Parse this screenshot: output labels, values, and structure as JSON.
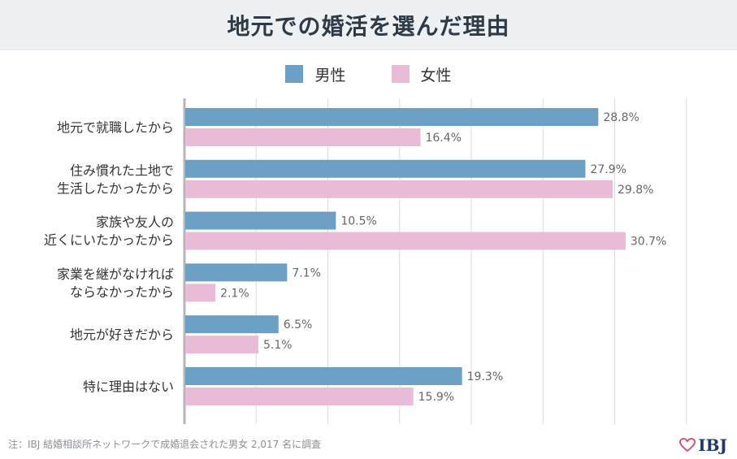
{
  "title": "地元での婚活を選んだ理由",
  "legend": {
    "male": "男性",
    "female": "女性"
  },
  "colors": {
    "male": "#6c9fc4",
    "female": "#e8bbd6",
    "grid": "#d9dde1",
    "axis": "#b5b5b5"
  },
  "chart_data": {
    "type": "bar",
    "orientation": "horizontal",
    "title": "地元での婚活を選んだ理由",
    "categories": [
      [
        "地元で就職したから"
      ],
      [
        "住み慣れた土地で",
        "生活したかったから"
      ],
      [
        "家族や友人の",
        "近くにいたかったから"
      ],
      [
        "家業を継がなければ",
        "ならなかったから"
      ],
      [
        "地元が好きだから"
      ],
      [
        "特に理由はない"
      ]
    ],
    "series": [
      {
        "name": "男性",
        "values": [
          28.8,
          27.9,
          10.5,
          7.1,
          6.5,
          19.3
        ]
      },
      {
        "name": "女性",
        "values": [
          16.4,
          29.8,
          30.7,
          2.1,
          5.1,
          15.9
        ]
      }
    ],
    "value_suffix": "%",
    "xlim": [
      0,
      35
    ],
    "grid": true,
    "legend_position": "top-center"
  },
  "footnote": "注：IBJ 結婚相談所ネットワークで成婚退会された男女 2,017 名に調査",
  "logo": {
    "text": "IBJ"
  }
}
